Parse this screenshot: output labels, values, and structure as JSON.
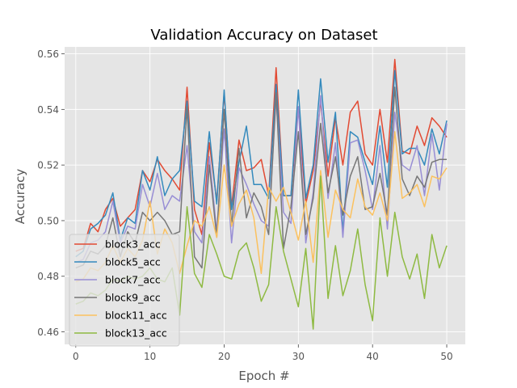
{
  "chart_data": {
    "type": "line",
    "title": "Validation Accuracy on Dataset",
    "xlabel": "Epoch #",
    "ylabel": "Accuracy",
    "xlim": [
      -1.5,
      52.5
    ],
    "ylim": [
      0.4555,
      0.5625
    ],
    "xticks": [
      0,
      10,
      20,
      30,
      40,
      50
    ],
    "yticks": [
      0.46,
      0.48,
      0.5,
      0.52,
      0.54,
      0.56
    ],
    "ytick_labels": [
      "0.46",
      "0.48",
      "0.50",
      "0.52",
      "0.54",
      "0.56"
    ],
    "grid": true,
    "legend_position": "bottom-left",
    "background": "#e5e5e5",
    "series": [
      {
        "name": "block3_acc",
        "color": "#e24a33",
        "values": [
          0.489,
          0.49,
          0.499,
          0.496,
          0.504,
          0.508,
          0.498,
          0.501,
          0.504,
          0.518,
          0.514,
          0.522,
          0.518,
          0.515,
          0.511,
          0.548,
          0.504,
          0.495,
          0.528,
          0.507,
          0.546,
          0.505,
          0.529,
          0.518,
          0.519,
          0.522,
          0.509,
          0.555,
          0.509,
          0.509,
          0.541,
          0.506,
          0.518,
          0.543,
          0.516,
          0.537,
          0.52,
          0.539,
          0.543,
          0.524,
          0.52,
          0.54,
          0.521,
          0.558,
          0.525,
          0.524,
          0.534,
          0.527,
          0.537,
          0.534,
          0.53
        ]
      },
      {
        "name": "block5_acc",
        "color": "#348abd",
        "values": [
          0.487,
          0.489,
          0.497,
          0.499,
          0.502,
          0.51,
          0.493,
          0.501,
          0.499,
          0.518,
          0.511,
          0.523,
          0.509,
          0.515,
          0.518,
          0.543,
          0.507,
          0.505,
          0.532,
          0.506,
          0.547,
          0.504,
          0.521,
          0.534,
          0.513,
          0.513,
          0.508,
          0.549,
          0.509,
          0.509,
          0.547,
          0.508,
          0.52,
          0.551,
          0.521,
          0.539,
          0.496,
          0.532,
          0.53,
          0.521,
          0.513,
          0.534,
          0.512,
          0.554,
          0.524,
          0.526,
          0.526,
          0.52,
          0.533,
          0.524,
          0.536
        ]
      },
      {
        "name": "block7_acc",
        "color": "#988ed5",
        "values": [
          0.485,
          0.486,
          0.492,
          0.493,
          0.496,
          0.507,
          0.492,
          0.498,
          0.497,
          0.513,
          0.505,
          0.517,
          0.504,
          0.509,
          0.507,
          0.527,
          0.496,
          0.492,
          0.523,
          0.496,
          0.533,
          0.492,
          0.519,
          0.513,
          0.506,
          0.5,
          0.498,
          0.544,
          0.503,
          0.499,
          0.541,
          0.492,
          0.51,
          0.545,
          0.508,
          0.528,
          0.494,
          0.528,
          0.529,
          0.518,
          0.504,
          0.527,
          0.497,
          0.539,
          0.52,
          0.518,
          0.527,
          0.509,
          0.531,
          0.511,
          0.535
        ]
      },
      {
        "name": "block9_acc",
        "color": "#777777",
        "values": [
          0.483,
          0.484,
          0.489,
          0.488,
          0.491,
          0.501,
          0.487,
          0.496,
          0.492,
          0.503,
          0.5,
          0.503,
          0.5,
          0.495,
          0.496,
          0.541,
          0.487,
          0.483,
          0.52,
          0.494,
          0.54,
          0.498,
          0.526,
          0.501,
          0.51,
          0.505,
          0.495,
          0.546,
          0.49,
          0.505,
          0.532,
          0.495,
          0.508,
          0.535,
          0.51,
          0.523,
          0.502,
          0.516,
          0.523,
          0.504,
          0.505,
          0.517,
          0.502,
          0.548,
          0.515,
          0.509,
          0.516,
          0.512,
          0.521,
          0.522,
          0.522
        ]
      },
      {
        "name": "block11_acc",
        "color": "#fbc15e",
        "values": [
          0.478,
          0.479,
          0.483,
          0.482,
          0.485,
          0.491,
          0.485,
          0.49,
          0.487,
          0.493,
          0.507,
          0.488,
          0.497,
          0.492,
          0.481,
          0.491,
          0.5,
          0.498,
          0.505,
          0.494,
          0.52,
          0.498,
          0.506,
          0.511,
          0.501,
          0.481,
          0.512,
          0.507,
          0.512,
          0.503,
          0.493,
          0.507,
          0.485,
          0.518,
          0.494,
          0.511,
          0.504,
          0.501,
          0.515,
          0.505,
          0.502,
          0.51,
          0.5,
          0.532,
          0.508,
          0.51,
          0.513,
          0.505,
          0.516,
          0.515,
          0.519
        ]
      },
      {
        "name": "block13_acc",
        "color": "#8eba42",
        "values": [
          0.47,
          0.471,
          0.474,
          0.473,
          0.475,
          0.479,
          0.478,
          0.48,
          0.479,
          0.48,
          0.483,
          0.479,
          0.478,
          0.483,
          0.466,
          0.505,
          0.481,
          0.476,
          0.495,
          0.488,
          0.48,
          0.479,
          0.489,
          0.492,
          0.483,
          0.471,
          0.477,
          0.505,
          0.489,
          0.479,
          0.469,
          0.49,
          0.461,
          0.516,
          0.472,
          0.491,
          0.473,
          0.482,
          0.497,
          0.477,
          0.464,
          0.501,
          0.48,
          0.503,
          0.487,
          0.479,
          0.488,
          0.472,
          0.495,
          0.483,
          0.491
        ]
      }
    ]
  }
}
